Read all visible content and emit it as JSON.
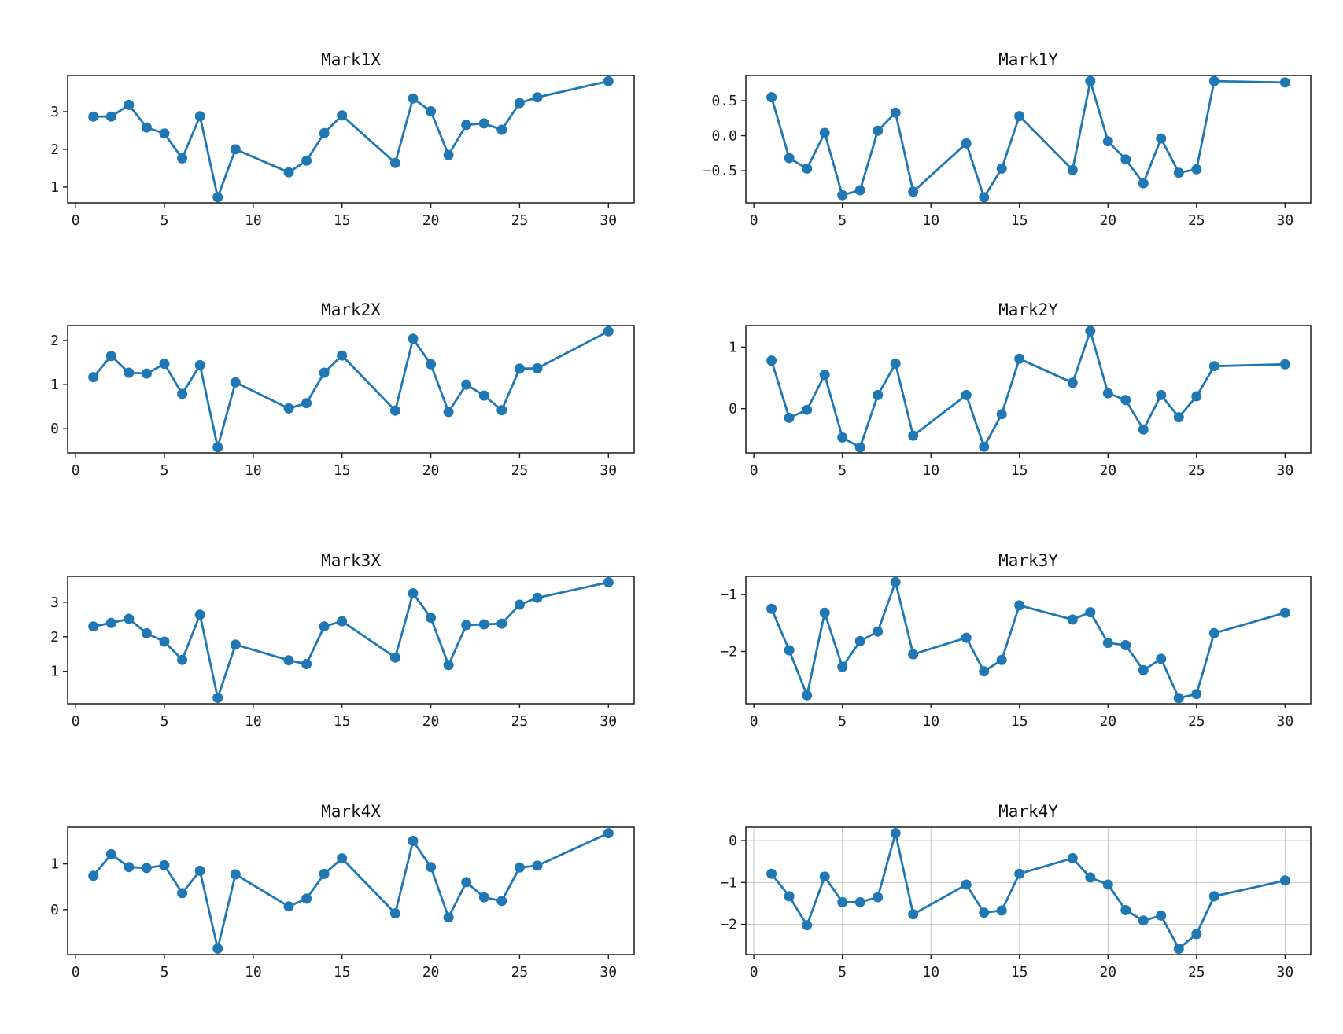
{
  "figure": {
    "background": "#ffffff",
    "line_color": "#1f77b4",
    "marker": "circle",
    "layout": "4 rows x 2 columns of line charts"
  },
  "chart_data": [
    {
      "type": "line",
      "title": "Mark1X",
      "x": [
        1,
        2,
        3,
        4,
        5,
        6,
        7,
        8,
        9,
        12,
        13,
        14,
        15,
        18,
        19,
        20,
        21,
        22,
        23,
        24,
        25,
        26,
        30
      ],
      "y": [
        2.87,
        2.87,
        3.18,
        2.58,
        2.42,
        1.76,
        2.88,
        0.73,
        2.0,
        1.39,
        1.7,
        2.43,
        2.9,
        1.64,
        3.35,
        3.01,
        1.85,
        2.65,
        2.69,
        2.52,
        3.23,
        3.38,
        3.81
      ],
      "xlim": [
        -0.45,
        31.45
      ],
      "ylim": [
        0.58,
        3.96
      ],
      "xticks": [
        0,
        5,
        10,
        15,
        20,
        25,
        30
      ],
      "xtick_labels": [
        "0",
        "5",
        "10",
        "15",
        "20",
        "25",
        "30"
      ],
      "yticks": [
        1,
        2,
        3
      ],
      "ytick_labels": [
        "1",
        "2",
        "3"
      ],
      "grid": false,
      "legend": null
    },
    {
      "type": "line",
      "title": "Mark1Y",
      "x": [
        1,
        2,
        3,
        4,
        5,
        6,
        7,
        8,
        9,
        12,
        13,
        14,
        15,
        18,
        19,
        20,
        21,
        22,
        23,
        24,
        25,
        26,
        30
      ],
      "y": [
        0.55,
        -0.32,
        -0.47,
        0.04,
        -0.85,
        -0.78,
        0.07,
        0.33,
        -0.8,
        -0.11,
        -0.88,
        -0.47,
        0.28,
        -0.49,
        0.78,
        -0.08,
        -0.34,
        -0.68,
        -0.04,
        -0.53,
        -0.48,
        0.78,
        0.76
      ],
      "xlim": [
        -0.45,
        31.45
      ],
      "ylim": [
        -0.96,
        0.86
      ],
      "xticks": [
        0,
        5,
        10,
        15,
        20,
        25,
        30
      ],
      "xtick_labels": [
        "0",
        "5",
        "10",
        "15",
        "20",
        "25",
        "30"
      ],
      "yticks": [
        0.5,
        0.0,
        -0.5
      ],
      "ytick_labels": [
        "0.5",
        "0.0",
        "−0.5"
      ],
      "grid": false,
      "legend": null
    },
    {
      "type": "line",
      "title": "Mark2X",
      "x": [
        1,
        2,
        3,
        4,
        5,
        6,
        7,
        8,
        9,
        12,
        13,
        14,
        15,
        18,
        19,
        20,
        21,
        22,
        23,
        24,
        25,
        26,
        30
      ],
      "y": [
        1.17,
        1.65,
        1.27,
        1.25,
        1.47,
        0.79,
        1.44,
        -0.42,
        1.05,
        0.46,
        0.58,
        1.27,
        1.66,
        0.41,
        2.04,
        1.46,
        0.38,
        1.0,
        0.75,
        0.42,
        1.36,
        1.37,
        2.21
      ],
      "xlim": [
        -0.45,
        31.45
      ],
      "ylim": [
        -0.55,
        2.34
      ],
      "xticks": [
        0,
        5,
        10,
        15,
        20,
        25,
        30
      ],
      "xtick_labels": [
        "0",
        "5",
        "10",
        "15",
        "20",
        "25",
        "30"
      ],
      "yticks": [
        0,
        1,
        2
      ],
      "ytick_labels": [
        "0",
        "1",
        "2"
      ],
      "grid": false,
      "legend": null
    },
    {
      "type": "line",
      "title": "Mark2Y",
      "x": [
        1,
        2,
        3,
        4,
        5,
        6,
        7,
        8,
        9,
        12,
        13,
        14,
        15,
        18,
        19,
        20,
        21,
        22,
        23,
        24,
        25,
        26,
        30
      ],
      "y": [
        0.78,
        -0.15,
        -0.02,
        0.55,
        -0.47,
        -0.63,
        0.22,
        0.73,
        -0.44,
        0.22,
        -0.62,
        -0.09,
        0.81,
        0.42,
        1.26,
        0.25,
        0.14,
        -0.34,
        0.22,
        -0.14,
        0.2,
        0.69,
        0.72
      ],
      "xlim": [
        -0.45,
        31.45
      ],
      "ylim": [
        -0.72,
        1.35
      ],
      "xticks": [
        0,
        5,
        10,
        15,
        20,
        25,
        30
      ],
      "xtick_labels": [
        "0",
        "5",
        "10",
        "15",
        "20",
        "25",
        "30"
      ],
      "yticks": [
        0,
        1
      ],
      "ytick_labels": [
        "0",
        "1"
      ],
      "grid": false,
      "legend": null
    },
    {
      "type": "line",
      "title": "Mark3X",
      "x": [
        1,
        2,
        3,
        4,
        5,
        6,
        7,
        8,
        9,
        12,
        13,
        14,
        15,
        18,
        19,
        20,
        21,
        22,
        23,
        24,
        25,
        26,
        30
      ],
      "y": [
        2.3,
        2.4,
        2.52,
        2.1,
        1.86,
        1.33,
        2.64,
        0.23,
        1.77,
        1.32,
        1.21,
        2.3,
        2.45,
        1.4,
        3.26,
        2.55,
        1.18,
        2.34,
        2.36,
        2.38,
        2.93,
        3.13,
        3.58
      ],
      "xlim": [
        -0.45,
        31.45
      ],
      "ylim": [
        0.06,
        3.75
      ],
      "xticks": [
        0,
        5,
        10,
        15,
        20,
        25,
        30
      ],
      "xtick_labels": [
        "0",
        "5",
        "10",
        "15",
        "20",
        "25",
        "30"
      ],
      "yticks": [
        1,
        2,
        3
      ],
      "ytick_labels": [
        "1",
        "2",
        "3"
      ],
      "grid": false,
      "legend": null
    },
    {
      "type": "line",
      "title": "Mark3Y",
      "x": [
        1,
        2,
        3,
        4,
        5,
        6,
        7,
        8,
        9,
        12,
        13,
        14,
        15,
        18,
        19,
        20,
        21,
        22,
        23,
        24,
        25,
        26,
        30
      ],
      "y": [
        -1.25,
        -1.98,
        -2.77,
        -1.32,
        -2.27,
        -1.82,
        -1.65,
        -0.78,
        -2.05,
        -1.76,
        -2.35,
        -2.15,
        -1.19,
        -1.44,
        -1.31,
        -1.85,
        -1.89,
        -2.33,
        -2.13,
        -2.82,
        -2.75,
        -1.68,
        -1.32
      ],
      "xlim": [
        -0.45,
        31.45
      ],
      "ylim": [
        -2.92,
        -0.68
      ],
      "xticks": [
        0,
        5,
        10,
        15,
        20,
        25,
        30
      ],
      "xtick_labels": [
        "0",
        "5",
        "10",
        "15",
        "20",
        "25",
        "30"
      ],
      "yticks": [
        -1,
        -2
      ],
      "ytick_labels": [
        "−1",
        "−2"
      ],
      "grid": false,
      "legend": null
    },
    {
      "type": "line",
      "title": "Mark4X",
      "x": [
        1,
        2,
        3,
        4,
        5,
        6,
        7,
        8,
        9,
        12,
        13,
        14,
        15,
        18,
        19,
        20,
        21,
        22,
        23,
        24,
        25,
        26,
        30
      ],
      "y": [
        0.74,
        1.21,
        0.93,
        0.91,
        0.97,
        0.36,
        0.85,
        -0.85,
        0.77,
        0.07,
        0.24,
        0.78,
        1.12,
        -0.08,
        1.5,
        0.93,
        -0.17,
        0.6,
        0.27,
        0.19,
        0.92,
        0.96,
        1.67
      ],
      "xlim": [
        -0.45,
        31.45
      ],
      "ylim": [
        -0.98,
        1.8
      ],
      "xticks": [
        0,
        5,
        10,
        15,
        20,
        25,
        30
      ],
      "xtick_labels": [
        "0",
        "5",
        "10",
        "15",
        "20",
        "25",
        "30"
      ],
      "yticks": [
        0,
        1
      ],
      "ytick_labels": [
        "0",
        "1"
      ],
      "grid": false,
      "legend": null
    },
    {
      "type": "line",
      "title": "Mark4Y",
      "x": [
        1,
        2,
        3,
        4,
        5,
        6,
        7,
        8,
        9,
        12,
        13,
        14,
        15,
        18,
        19,
        20,
        21,
        22,
        23,
        24,
        25,
        26,
        30
      ],
      "y": [
        -0.79,
        -1.33,
        -2.02,
        -0.86,
        -1.47,
        -1.47,
        -1.35,
        0.18,
        -1.76,
        -1.05,
        -1.72,
        -1.67,
        -0.79,
        -0.42,
        -0.88,
        -1.05,
        -1.66,
        -1.91,
        -1.79,
        -2.58,
        -2.23,
        -1.33,
        -0.95
      ],
      "xlim": [
        -0.45,
        31.45
      ],
      "ylim": [
        -2.72,
        0.32
      ],
      "xticks": [
        0,
        5,
        10,
        15,
        20,
        25,
        30
      ],
      "xtick_labels": [
        "0",
        "5",
        "10",
        "15",
        "20",
        "25",
        "30"
      ],
      "yticks": [
        0,
        -1,
        -2
      ],
      "ytick_labels": [
        "0",
        "−1",
        "−2"
      ],
      "grid": true,
      "legend": null
    }
  ]
}
